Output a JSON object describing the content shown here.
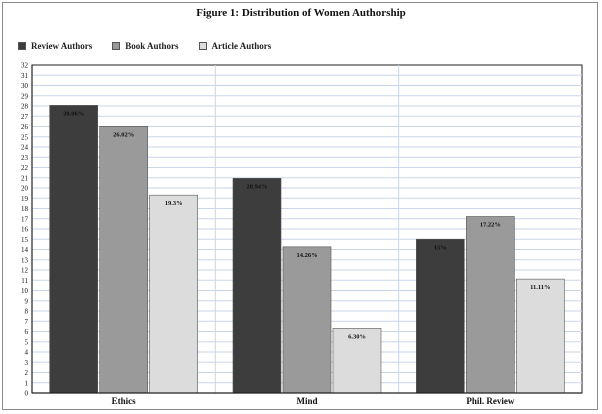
{
  "chart_data": {
    "type": "bar",
    "title": "Figure 1: Distribution of Women Authorship",
    "categories": [
      "Ethics",
      "Mind",
      "Phil. Review"
    ],
    "series": [
      {
        "name": "Review Authors",
        "color": "#3d3d3d",
        "values": [
          28.06,
          20.94,
          15
        ],
        "labels": [
          "28.06%",
          "20.94%",
          "15%"
        ]
      },
      {
        "name": "Book Authors",
        "color": "#9a9a9a",
        "values": [
          26.02,
          14.26,
          17.22
        ],
        "labels": [
          "26.02%",
          "14.26%",
          "17.22%"
        ]
      },
      {
        "name": "Article Authors",
        "color": "#dcdcdc",
        "values": [
          19.3,
          6.3,
          11.11
        ],
        "labels": [
          "19.3%",
          "6.30%",
          "11.11%"
        ]
      }
    ],
    "ylim": [
      0,
      32
    ],
    "yticks": [
      "0",
      "1",
      "2",
      "3",
      "4",
      "5",
      "6",
      "7",
      "8",
      "9",
      "10",
      "11",
      "12",
      "13",
      "14",
      "15",
      "16",
      "17",
      "18",
      "19",
      "20",
      "21",
      "22",
      "23",
      "24",
      "25",
      "26",
      "27",
      "28",
      "29",
      "30",
      "31",
      "32"
    ],
    "grid": true,
    "legend_position": "top-left"
  },
  "colors": {
    "grid_line": "#c9d6e8",
    "axis": "#222222"
  }
}
